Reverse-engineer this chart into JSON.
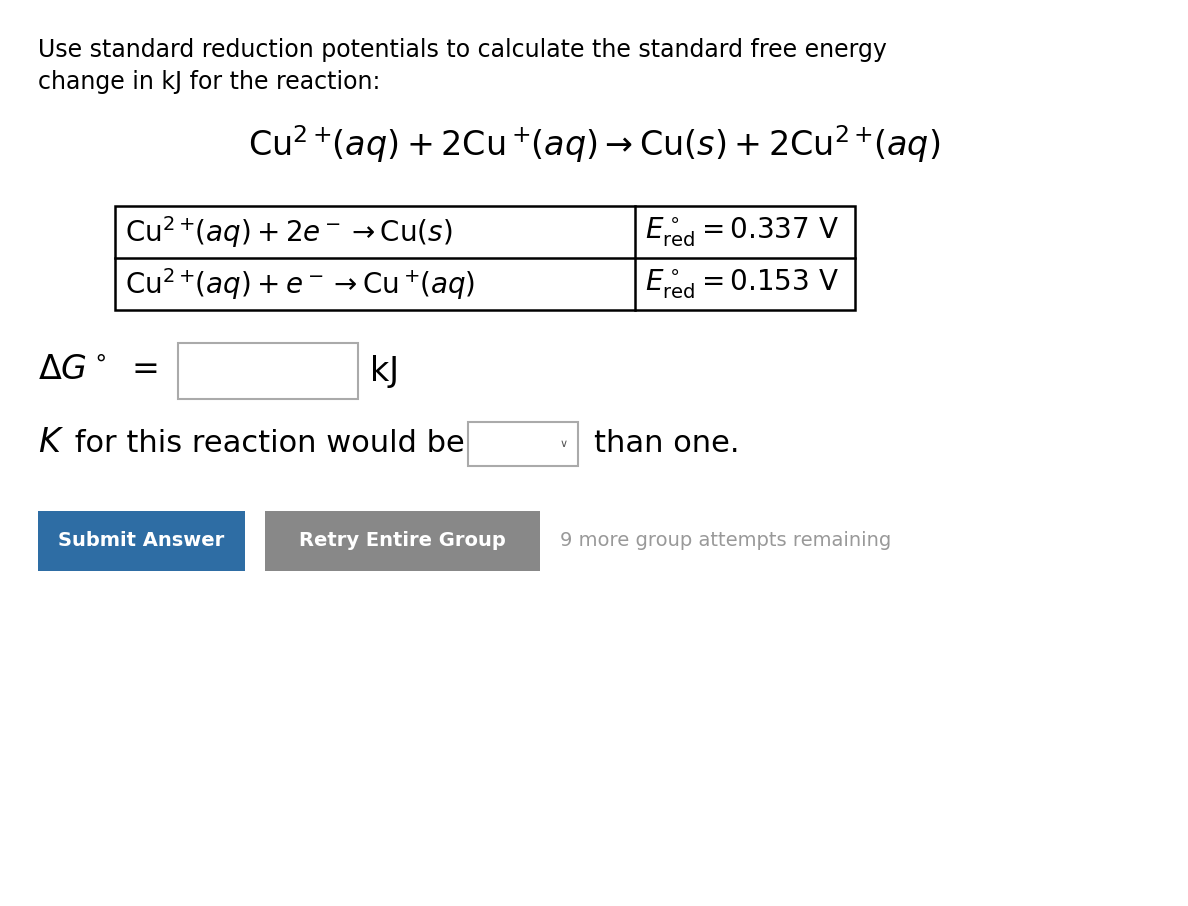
{
  "background_color": "#ffffff",
  "text_color": "#000000",
  "title_line1": "Use standard reduction potentials to calculate the standard free energy",
  "title_line2": "change in kJ for the reaction:",
  "btn1_text": "Submit Answer",
  "btn1_color": "#2e6da4",
  "btn2_text": "Retry Entire Group",
  "btn2_color": "#888888",
  "attempts_text": "9 more group attempts remaining",
  "attempts_color": "#999999",
  "title_fontsize": 17,
  "eq_fontsize": 24,
  "table_fontsize": 20,
  "dg_fontsize": 24,
  "k_fontsize": 22,
  "btn_fontsize": 14
}
